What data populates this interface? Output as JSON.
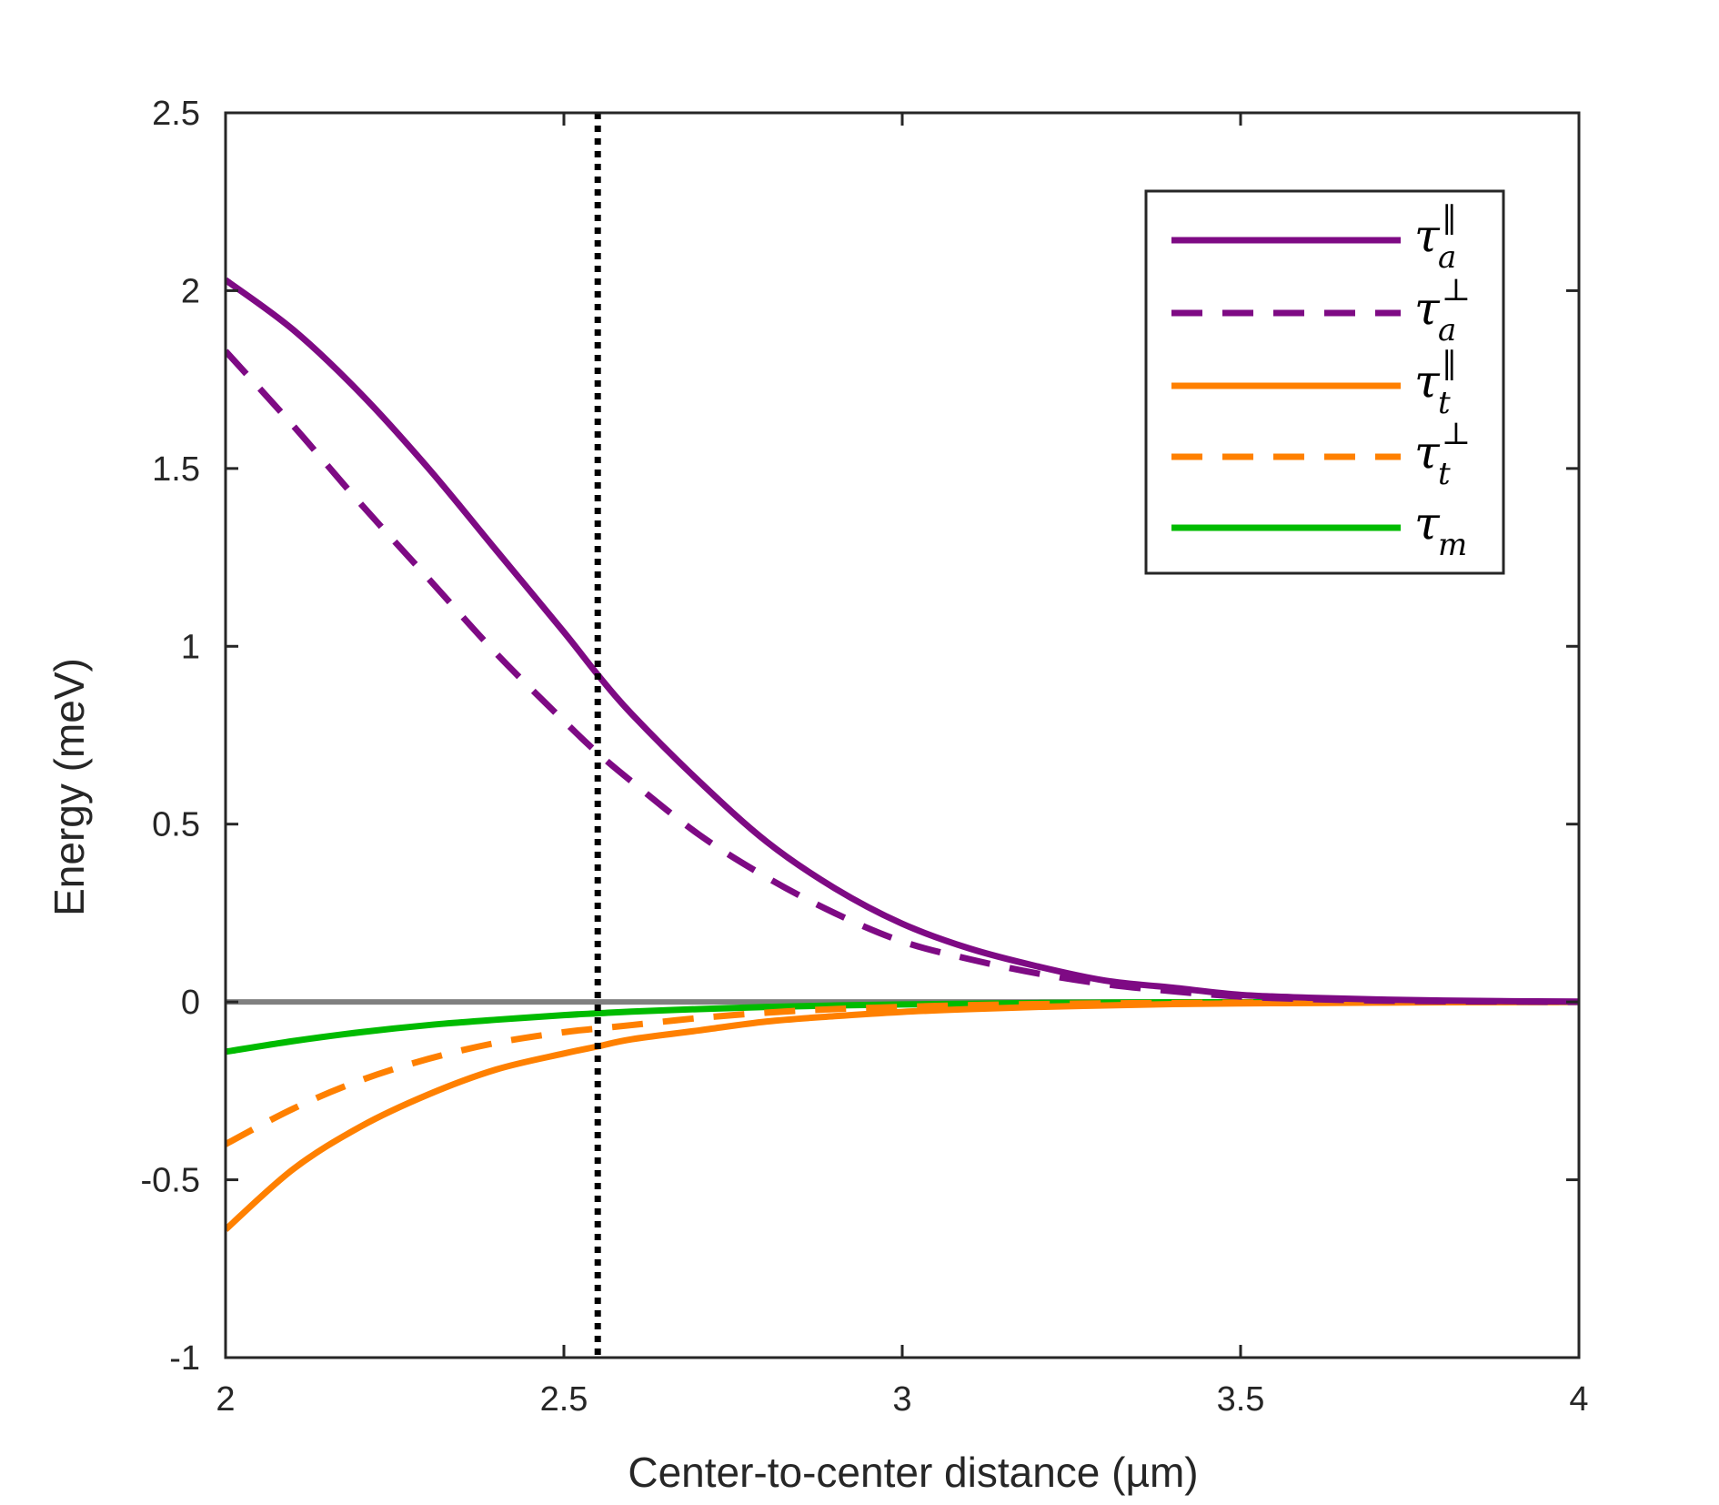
{
  "chart_data": {
    "type": "line",
    "xlabel": "Center-to-center distance (µm)",
    "ylabel": "Energy (meV)",
    "xlim": [
      2,
      4
    ],
    "ylim": [
      -1,
      2.5
    ],
    "xticks": [
      2,
      2.5,
      3,
      3.5,
      4
    ],
    "xtick_labels": [
      "2",
      "2.5",
      "3",
      "3.5",
      "4"
    ],
    "yticks": [
      -1,
      -0.5,
      0,
      0.5,
      1,
      1.5,
      2,
      2.5
    ],
    "ytick_labels": [
      "-1",
      "-0.5",
      "0",
      "0.5",
      "1",
      "1.5",
      "2",
      "2.5"
    ],
    "grid": false,
    "legend_position": "top-right",
    "reference_line": {
      "x": 2.55,
      "style": "dotted",
      "color": "#000000"
    },
    "zero_line": {
      "y": 0,
      "color": "#808080"
    },
    "x": [
      2.0,
      2.1,
      2.2,
      2.3,
      2.4,
      2.5,
      2.55,
      2.6,
      2.7,
      2.8,
      2.9,
      3.0,
      3.1,
      3.2,
      3.3,
      3.4,
      3.5,
      3.6,
      3.7,
      3.8,
      3.9,
      4.0
    ],
    "series": [
      {
        "name": "tau_a_parallel",
        "legend_base": "τ",
        "legend_sub": "a",
        "legend_sup": "‖",
        "color": "#7e0a84",
        "style": "solid",
        "values": [
          2.03,
          1.89,
          1.71,
          1.5,
          1.27,
          1.04,
          0.92,
          0.81,
          0.62,
          0.45,
          0.32,
          0.22,
          0.15,
          0.1,
          0.06,
          0.04,
          0.02,
          0.012,
          0.007,
          0.004,
          0.002,
          0.001
        ]
      },
      {
        "name": "tau_a_perp",
        "legend_base": "τ",
        "legend_sub": "a",
        "legend_sup": "⊥",
        "color": "#7e0a84",
        "style": "dashed",
        "values": [
          1.83,
          1.62,
          1.4,
          1.19,
          0.98,
          0.79,
          0.7,
          0.62,
          0.47,
          0.35,
          0.25,
          0.17,
          0.12,
          0.08,
          0.05,
          0.03,
          0.015,
          0.008,
          0.004,
          0.002,
          0.001,
          0.0
        ]
      },
      {
        "name": "tau_t_parallel",
        "legend_base": "τ",
        "legend_sub": "t",
        "legend_sup": "‖",
        "color": "#ff8000",
        "style": "solid",
        "values": [
          -0.64,
          -0.47,
          -0.35,
          -0.26,
          -0.19,
          -0.145,
          -0.125,
          -0.105,
          -0.08,
          -0.055,
          -0.04,
          -0.028,
          -0.02,
          -0.014,
          -0.01,
          -0.006,
          -0.004,
          -0.003,
          -0.002,
          -0.001,
          -0.0005,
          0.0
        ]
      },
      {
        "name": "tau_t_perp",
        "legend_base": "τ",
        "legend_sub": "t",
        "legend_sup": "⊥",
        "color": "#ff8000",
        "style": "dashed",
        "values": [
          -0.4,
          -0.3,
          -0.22,
          -0.16,
          -0.115,
          -0.085,
          -0.075,
          -0.065,
          -0.045,
          -0.03,
          -0.02,
          -0.014,
          -0.009,
          -0.006,
          -0.004,
          -0.003,
          -0.002,
          -0.001,
          -0.001,
          0.0,
          0.0,
          0.0
        ]
      },
      {
        "name": "tau_m",
        "legend_base": "τ",
        "legend_sub": "m",
        "legend_sup": "",
        "color": "#00bb00",
        "style": "solid",
        "values": [
          -0.14,
          -0.11,
          -0.085,
          -0.065,
          -0.05,
          -0.037,
          -0.032,
          -0.027,
          -0.02,
          -0.014,
          -0.01,
          -0.007,
          -0.005,
          -0.003,
          -0.002,
          -0.001,
          -0.001,
          0.0,
          0.0,
          0.0,
          0.0,
          0.0
        ]
      }
    ]
  }
}
